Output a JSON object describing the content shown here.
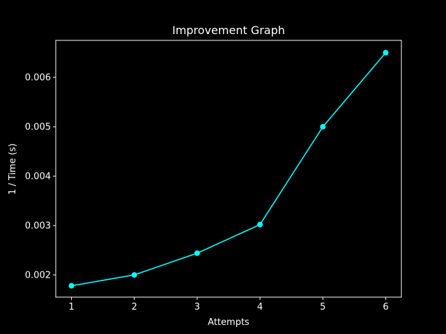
{
  "chart_data": {
    "type": "line",
    "title": "Improvement Graph",
    "xlabel": "Attempts",
    "ylabel": "1 / Time (s)",
    "x": [
      1,
      2,
      3,
      4,
      5,
      6
    ],
    "series": [
      {
        "values": [
          0.00178,
          0.002,
          0.00244,
          0.00302,
          0.005,
          0.0065
        ],
        "color": "#00ffff",
        "marker": "circle"
      }
    ],
    "xlim": [
      0.75,
      6.25
    ],
    "ylim": [
      0.00155,
      0.00675
    ],
    "xticks": [
      1,
      2,
      3,
      4,
      5,
      6
    ],
    "xtick_labels": [
      "1",
      "2",
      "3",
      "4",
      "5",
      "6"
    ],
    "yticks": [
      0.002,
      0.003,
      0.004,
      0.005,
      0.006
    ],
    "ytick_labels": [
      "0.002",
      "0.003",
      "0.004",
      "0.005",
      "0.006"
    ],
    "grid": false,
    "background": "#000000",
    "foreground": "#ffffff"
  }
}
